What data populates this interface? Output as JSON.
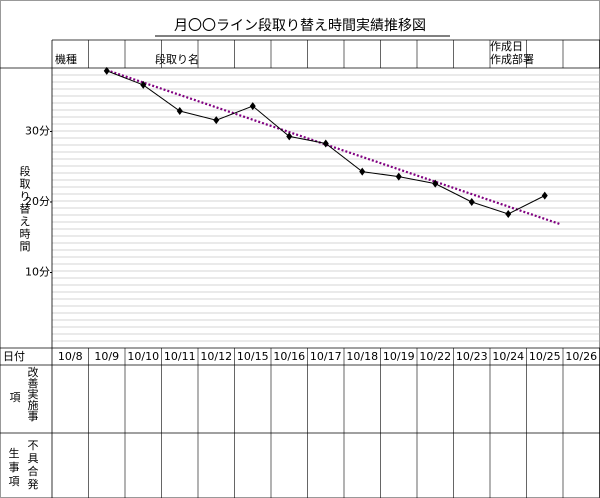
{
  "chart_data": {
    "type": "line",
    "title": "月〇〇ライン段取り替え時間実績推移図",
    "created_date_label": "作成日",
    "department_label": "作成部署",
    "model_label": "機種",
    "setup_name_label": "段取り名",
    "y_label": "段取り替え時間",
    "date_row_label": "日付",
    "improvement_label": "改善実施事項",
    "defect_label": "不具合発生事項",
    "categories": [
      "10/8",
      "10/9",
      "10/10",
      "10/11",
      "10/12",
      "10/15",
      "10/16",
      "10/17",
      "10/18",
      "10/19",
      "10/22",
      "10/23",
      "10/24",
      "10/25",
      "10/26"
    ],
    "series": [
      {
        "color": "#000000",
        "values": [
          null,
          38.6,
          36.6,
          32.9,
          31.6,
          33.6,
          29.3,
          28.3,
          24.3,
          23.6,
          22.6,
          20,
          18.3,
          20.9,
          null
        ]
      }
    ],
    "trend": {
      "color": "#800080",
      "start": {
        "index": 1,
        "value": 38.7
      },
      "end": {
        "index": 13,
        "value": 17.6
      }
    },
    "ylim": [
      0,
      39
    ],
    "yticks": [
      {
        "value": 10,
        "label": "10分"
      },
      {
        "value": 20,
        "label": "20分"
      },
      {
        "value": 30,
        "label": "30分"
      }
    ]
  }
}
